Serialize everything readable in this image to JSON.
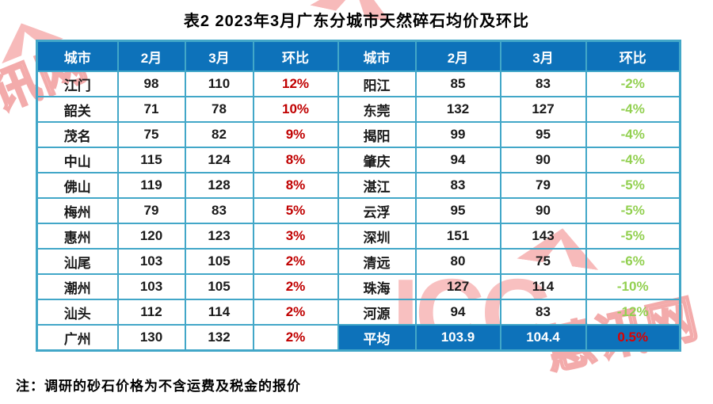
{
  "page": {
    "title": "表2  2023年3月广东分城市天然碎石均价及环比",
    "note": "注：调研的砂石价格为不含运费及税金的报价"
  },
  "watermark": {
    "icc": "ICC",
    "cn": "慧讯网"
  },
  "colors": {
    "header_bg": "#0d72ba",
    "border": "#42a7c8",
    "positive_pct": "#c00000",
    "negative_pct": "#92d050",
    "avg_row_bg": "#0d72ba",
    "avg_pct": "#dc0000",
    "watermark_pink": "rgba(242,140,140,0.55)"
  },
  "chart_data": {
    "type": "table",
    "title": "表2  2023年3月广东分城市天然碎石均价及环比",
    "columns": [
      "城市",
      "2月",
      "3月",
      "环比",
      "城市",
      "2月",
      "3月",
      "环比"
    ],
    "rows": [
      [
        "江门",
        "98",
        "110",
        "12%",
        "阳江",
        "85",
        "83",
        "-2%"
      ],
      [
        "韶关",
        "71",
        "78",
        "10%",
        "东莞",
        "132",
        "127",
        "-4%"
      ],
      [
        "茂名",
        "75",
        "82",
        "9%",
        "揭阳",
        "99",
        "95",
        "-4%"
      ],
      [
        "中山",
        "115",
        "124",
        "8%",
        "肇庆",
        "94",
        "90",
        "-4%"
      ],
      [
        "佛山",
        "119",
        "128",
        "8%",
        "湛江",
        "83",
        "79",
        "-5%"
      ],
      [
        "梅州",
        "79",
        "83",
        "5%",
        "云浮",
        "95",
        "90",
        "-5%"
      ],
      [
        "惠州",
        "120",
        "123",
        "3%",
        "深圳",
        "151",
        "143",
        "-5%"
      ],
      [
        "汕尾",
        "103",
        "105",
        "2%",
        "清远",
        "80",
        "75",
        "-6%"
      ],
      [
        "潮州",
        "103",
        "105",
        "2%",
        "珠海",
        "127",
        "114",
        "-10%"
      ],
      [
        "汕头",
        "112",
        "114",
        "2%",
        "河源",
        "94",
        "83",
        "-12%"
      ],
      [
        "广州",
        "130",
        "132",
        "2%",
        "平均",
        "103.9",
        "104.4",
        "0.5%"
      ]
    ],
    "notes": "左侧环比为红色正值，右侧环比为绿色负值；末行右侧为平均行（蓝底白字，环比红字）"
  }
}
